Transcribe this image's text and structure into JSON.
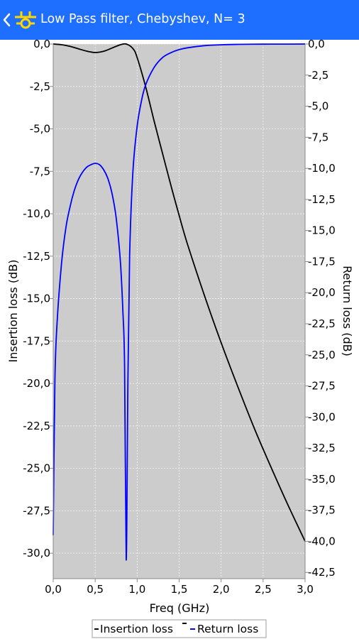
{
  "app_bar": {
    "title": "Low Pass filter, Chebyshev, N= 3",
    "back_icon": "chevron-left-icon",
    "app_icon": "filter-circuit-icon",
    "background": "#1e6eff"
  },
  "chart_data": {
    "type": "line",
    "xlabel": "Freq (GHz)",
    "ylabel": "Insertion loss (dB)",
    "y2label": "Return loss (dB)",
    "xlim": [
      0,
      3.0
    ],
    "ylim": [
      -31.5,
      0
    ],
    "y2lim": [
      -43,
      0
    ],
    "xticks": [
      "0,0",
      "0,5",
      "1,0",
      "1,5",
      "2,0",
      "2,5",
      "3,0"
    ],
    "yticks": [
      "0,0",
      "-2,5",
      "-5,0",
      "-7,5",
      "-10,0",
      "-12,5",
      "-15,0",
      "-17,5",
      "-20,0",
      "-22,5",
      "-25,0",
      "-27,5",
      "-30,0"
    ],
    "y2ticks": [
      "0,0",
      "-2,5",
      "-5,0",
      "-7,5",
      "-10,0",
      "-12,5",
      "-15,0",
      "-17,5",
      "-20,0",
      "-22,5",
      "-25,0",
      "-27,5",
      "-30,0",
      "-32,5",
      "-35,0",
      "-37,5",
      "-40,0",
      "-42,5"
    ],
    "grid": true,
    "plot_background": "#cccccc",
    "legend_position": "bottom-center",
    "series": [
      {
        "name": "Insertion loss",
        "axis": "left",
        "color": "#000000",
        "x": [
          0.0,
          0.1,
          0.2,
          0.3,
          0.4,
          0.5,
          0.6,
          0.7,
          0.8,
          0.87,
          0.95,
          1.0,
          1.1,
          1.2,
          1.3,
          1.4,
          1.5,
          1.6,
          1.8,
          2.0,
          2.2,
          2.4,
          2.6,
          2.8,
          3.0
        ],
        "values": [
          0.0,
          -0.04,
          -0.14,
          -0.28,
          -0.42,
          -0.5,
          -0.43,
          -0.24,
          -0.04,
          0.0,
          -0.27,
          -0.8,
          -2.5,
          -4.5,
          -6.4,
          -8.3,
          -10.1,
          -11.8,
          -14.8,
          -17.6,
          -20.2,
          -22.7,
          -25.0,
          -27.2,
          -29.3
        ]
      },
      {
        "name": "Return loss",
        "axis": "right",
        "color": "#0000ff",
        "x": [
          0.0,
          0.02,
          0.05,
          0.1,
          0.15,
          0.2,
          0.25,
          0.3,
          0.35,
          0.4,
          0.45,
          0.5,
          0.55,
          0.6,
          0.65,
          0.7,
          0.75,
          0.8,
          0.83,
          0.85,
          0.87,
          0.89,
          0.91,
          0.95,
          1.0,
          1.05,
          1.1,
          1.2,
          1.3,
          1.4,
          1.5,
          1.6,
          1.8,
          2.0,
          2.2,
          2.5,
          2.8,
          3.0
        ],
        "values": [
          -39.5,
          -27.0,
          -22.0,
          -17.6,
          -14.8,
          -13.1,
          -11.8,
          -10.9,
          -10.3,
          -9.9,
          -9.7,
          -9.6,
          -9.7,
          -10.1,
          -10.8,
          -12.0,
          -14.0,
          -17.5,
          -21.5,
          -26.0,
          -41.5,
          -27.0,
          -17.0,
          -10.2,
          -6.6,
          -4.6,
          -3.3,
          -1.9,
          -1.1,
          -0.7,
          -0.45,
          -0.3,
          -0.13,
          -0.06,
          -0.03,
          -0.01,
          -0.005,
          0.0
        ]
      }
    ]
  }
}
